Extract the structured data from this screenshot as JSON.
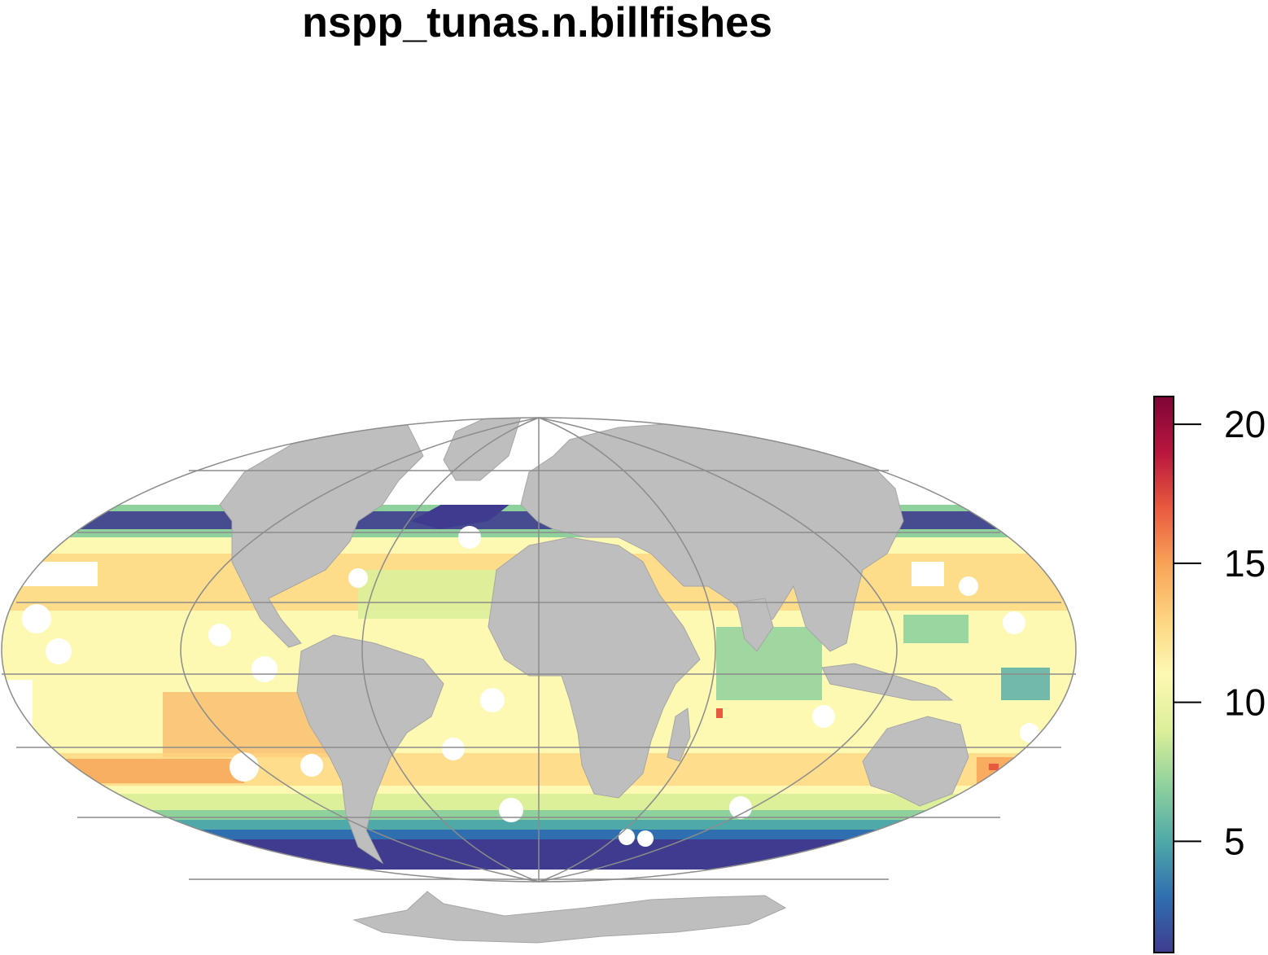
{
  "title": "nspp_tunas.n.billfishes",
  "map": {
    "projection": "mollweide",
    "land_color": "#bebebe",
    "land_border_color": "#a6a6a6",
    "graticule_color": "#8c8c8c",
    "background_color": "#ffffff"
  },
  "legend": {
    "min": 1,
    "max": 21,
    "ticks": [
      {
        "value": 5,
        "label": "5"
      },
      {
        "value": 10,
        "label": "10"
      },
      {
        "value": 15,
        "label": "15"
      },
      {
        "value": 20,
        "label": "20"
      }
    ],
    "colors": [
      "#3f3c8f",
      "#2f6fb0",
      "#4fa9a8",
      "#8fd19d",
      "#dcef99",
      "#fdf9b3",
      "#fdd47f",
      "#f8a257",
      "#e9593f",
      "#b8163d",
      "#7e0537"
    ]
  }
}
